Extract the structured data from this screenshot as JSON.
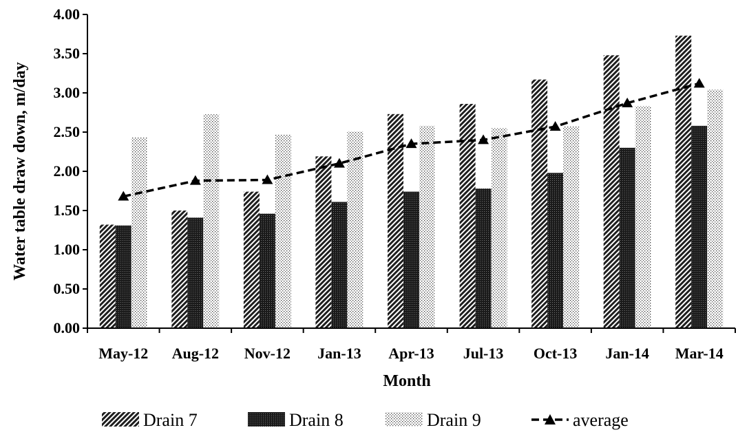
{
  "chart_data": {
    "type": "bar",
    "title": "",
    "xlabel": "Month",
    "ylabel": "Water table draw down, m/day",
    "ylim": [
      0,
      4
    ],
    "ytick_step": 0.5,
    "ytick_labels": [
      "0.00",
      "0.50",
      "1.00",
      "1.50",
      "2.00",
      "2.50",
      "3.00",
      "3.50",
      "4.00"
    ],
    "categories": [
      "May-12",
      "Aug-12",
      "Nov-12",
      "Jan-13",
      "Apr-13",
      "Jul-13",
      "Oct-13",
      "Jan-14",
      "Mar-14"
    ],
    "series": [
      {
        "name": "Drain 7",
        "kind": "bar",
        "pattern": "diagonal-hatch",
        "values": [
          1.32,
          1.5,
          1.74,
          2.19,
          2.73,
          2.86,
          3.17,
          3.48,
          3.73
        ]
      },
      {
        "name": "Drain 8",
        "kind": "bar",
        "pattern": "dense-dark",
        "values": [
          1.31,
          1.41,
          1.46,
          1.61,
          1.74,
          1.78,
          1.98,
          2.3,
          2.58
        ]
      },
      {
        "name": "Drain 9",
        "kind": "bar",
        "pattern": "light-dots",
        "values": [
          2.43,
          2.73,
          2.47,
          2.51,
          2.58,
          2.55,
          2.57,
          2.83,
          3.04
        ]
      },
      {
        "name": "average",
        "kind": "line",
        "style": "dashed-with-triangle-markers",
        "values": [
          1.68,
          1.88,
          1.89,
          2.1,
          2.35,
          2.4,
          2.57,
          2.87,
          3.12
        ]
      }
    ],
    "legend_position": "bottom",
    "grid": false
  }
}
